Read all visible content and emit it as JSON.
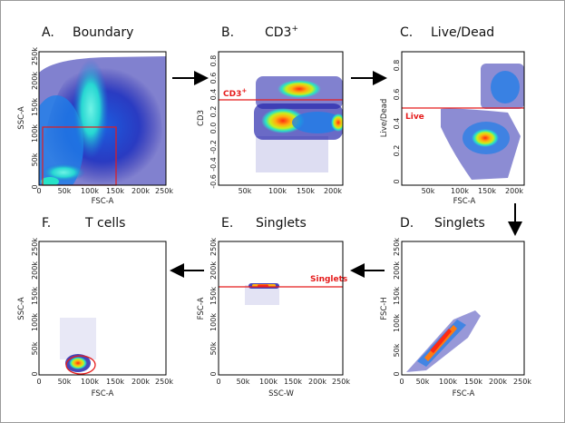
{
  "colors": {
    "gate": "#e51c1c",
    "density_low": "#1a1aa8",
    "density_mid": "#27e3c8",
    "density_high": "#ff2a12",
    "axis": "#000000"
  },
  "panels": {
    "A": {
      "letter": "A.",
      "title": "Boundary",
      "xlabel": "FSC-A",
      "ylabel": "SSC-A",
      "xticks": [
        "0",
        "50k",
        "100k",
        "150k",
        "200k",
        "250k"
      ],
      "yticks": [
        "0",
        "50k",
        "100k",
        "150k",
        "200k",
        "250k"
      ]
    },
    "B": {
      "letter": "B.",
      "title": "CD3",
      "title_sup": "+",
      "gate_label": "CD3",
      "gate_sup": "+",
      "xlabel": "",
      "ylabel": "CD3",
      "xticks": [
        "50k",
        "100k",
        "150k",
        "200k"
      ],
      "yticks": [
        "-0.6",
        "-0.4",
        "-0.2",
        "0.0",
        "0.2",
        "0.4",
        "0.6",
        "0.8"
      ]
    },
    "C": {
      "letter": "C.",
      "title": "Live/Dead",
      "gate_label": "Live",
      "xlabel": "FSC-A",
      "ylabel": "Live/Dead",
      "xticks": [
        "50k",
        "100k",
        "150k",
        "200k"
      ],
      "yticks": [
        "0",
        "0.2",
        "0.4",
        "0.6",
        "0.8"
      ]
    },
    "D": {
      "letter": "D.",
      "title": "Singlets",
      "xlabel": "FSC-A",
      "ylabel": "FSC-H",
      "xticks": [
        "0",
        "50k",
        "100k",
        "150k",
        "200k",
        "250k"
      ],
      "yticks": [
        "0",
        "50k",
        "100k",
        "150k",
        "200k",
        "250k"
      ]
    },
    "E": {
      "letter": "E.",
      "title": "Singlets",
      "gate_label": "Singlets",
      "xlabel": "SSC-W",
      "ylabel": "FSC-A",
      "xticks": [
        "0",
        "50k",
        "100k",
        "150k",
        "200k",
        "250k"
      ],
      "yticks": [
        "0",
        "50k",
        "100k",
        "150k",
        "200k",
        "250k"
      ]
    },
    "F": {
      "letter": "F.",
      "title": "T cells",
      "xlabel": "FSC-A",
      "ylabel": "SSC-A",
      "xticks": [
        "0",
        "50k",
        "100k",
        "150k",
        "200k",
        "250k"
      ],
      "yticks": [
        "0",
        "50k",
        "100k",
        "150k",
        "200k",
        "250k"
      ]
    }
  }
}
